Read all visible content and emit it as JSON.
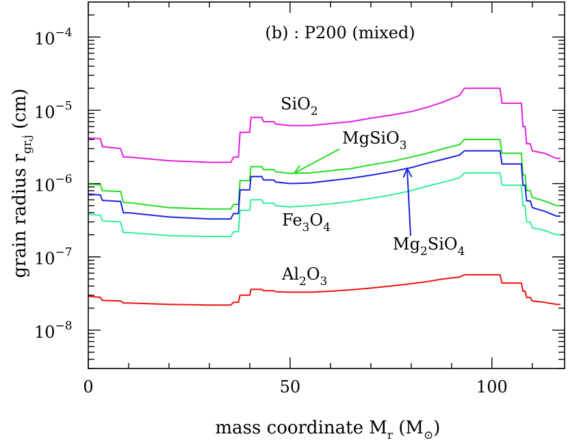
{
  "chart_data": {
    "type": "line",
    "title": "(b) : P200 (mixed)",
    "xlabel": "mass coordinate M",
    "xlabel_sub": "r",
    "xlabel_unit_open": " (M",
    "xlabel_unit_sub": "⊙",
    "xlabel_unit_close": ")",
    "ylabel": "grain radius r",
    "ylabel_sub": "gr,j",
    "ylabel_unit": " (cm)",
    "xlim": [
      0,
      118
    ],
    "ylim": [
      3e-09,
      0.0003
    ],
    "yscale": "log",
    "x_ticks": [
      {
        "value": 0,
        "label": "0"
      },
      {
        "value": 50,
        "label": "50"
      },
      {
        "value": 100,
        "label": "100"
      }
    ],
    "y_ticks": [
      {
        "exp": -8,
        "base": "10",
        "sup": "−8"
      },
      {
        "exp": -7,
        "base": "10",
        "sup": "−7"
      },
      {
        "exp": -6,
        "base": "10",
        "sup": "−6"
      },
      {
        "exp": -5,
        "base": "10",
        "sup": "−5"
      },
      {
        "exp": -4,
        "base": "10",
        "sup": "−4"
      }
    ],
    "series": [
      {
        "name": "SiO2",
        "color": "#e020e0",
        "points": [
          [
            0,
            4.2e-06
          ],
          [
            3,
            4.1e-06
          ],
          [
            3.5,
            3.2e-06
          ],
          [
            8,
            3e-06
          ],
          [
            8.7,
            2.3e-06
          ],
          [
            10,
            2.3e-06
          ],
          [
            20,
            2.05e-06
          ],
          [
            30,
            1.95e-06
          ],
          [
            35.3,
            1.95e-06
          ],
          [
            36,
            2.3e-06
          ],
          [
            37.2,
            2.3e-06
          ],
          [
            37.6,
            5e-06
          ],
          [
            40,
            5e-06
          ],
          [
            40.3,
            8e-06
          ],
          [
            43,
            8e-06
          ],
          [
            43.4,
            7e-06
          ],
          [
            46,
            7e-06
          ],
          [
            46.4,
            6.5e-06
          ],
          [
            50,
            6.2e-06
          ],
          [
            55,
            6.2e-06
          ],
          [
            60,
            6.6e-06
          ],
          [
            65,
            7e-06
          ],
          [
            70,
            7.8e-06
          ],
          [
            75,
            8.6e-06
          ],
          [
            80,
            9.6e-06
          ],
          [
            84,
            1.1e-05
          ],
          [
            88,
            1.3e-05
          ],
          [
            92,
            1.6e-05
          ],
          [
            93.2,
            2e-05
          ],
          [
            102,
            2e-05
          ],
          [
            102.5,
            1.25e-05
          ],
          [
            107.3,
            1.25e-05
          ],
          [
            107.7,
            6e-06
          ],
          [
            108.2,
            6e-06
          ],
          [
            108.6,
            3.5e-06
          ],
          [
            109.5,
            3.5e-06
          ],
          [
            110,
            2.8e-06
          ],
          [
            113,
            2.6e-06
          ],
          [
            116,
            2.2e-06
          ],
          [
            117,
            2.2e-06
          ]
        ]
      },
      {
        "name": "MgSiO3",
        "color": "#22dd22",
        "points": [
          [
            0,
            9.8e-07
          ],
          [
            3,
            9.6e-07
          ],
          [
            3.5,
            8e-07
          ],
          [
            8,
            7.8e-07
          ],
          [
            8.7,
            5.5e-07
          ],
          [
            10,
            5.5e-07
          ],
          [
            20,
            4.7e-07
          ],
          [
            30,
            4.5e-07
          ],
          [
            35.3,
            4.5e-07
          ],
          [
            36,
            5.2e-07
          ],
          [
            37.2,
            5.2e-07
          ],
          [
            37.6,
            1.1e-06
          ],
          [
            40,
            1.1e-06
          ],
          [
            40.3,
            1.7e-06
          ],
          [
            43,
            1.7e-06
          ],
          [
            43.4,
            1.55e-06
          ],
          [
            46,
            1.55e-06
          ],
          [
            46.4,
            1.45e-06
          ],
          [
            50,
            1.38e-06
          ],
          [
            55,
            1.4e-06
          ],
          [
            60,
            1.5e-06
          ],
          [
            65,
            1.6e-06
          ],
          [
            70,
            1.8e-06
          ],
          [
            75,
            2e-06
          ],
          [
            80,
            2.3e-06
          ],
          [
            84,
            2.6e-06
          ],
          [
            88,
            3e-06
          ],
          [
            92,
            3.4e-06
          ],
          [
            93.2,
            4e-06
          ],
          [
            102,
            4e-06
          ],
          [
            102.5,
            2.6e-06
          ],
          [
            107.3,
            2.6e-06
          ],
          [
            107.7,
            1.3e-06
          ],
          [
            108.2,
            1.3e-06
          ],
          [
            108.6,
            8e-07
          ],
          [
            109.5,
            8e-07
          ],
          [
            110,
            6.5e-07
          ],
          [
            113,
            5.8e-07
          ],
          [
            116,
            5e-07
          ],
          [
            117,
            5e-07
          ]
        ]
      },
      {
        "name": "Mg2SiO4",
        "color": "#1a22dd",
        "points": [
          [
            0,
            7.2e-07
          ],
          [
            3,
            7e-07
          ],
          [
            3.5,
            5.9e-07
          ],
          [
            8,
            5.7e-07
          ],
          [
            8.7,
            4e-07
          ],
          [
            10,
            4e-07
          ],
          [
            20,
            3.5e-07
          ],
          [
            30,
            3.3e-07
          ],
          [
            35.3,
            3.3e-07
          ],
          [
            36,
            3.9e-07
          ],
          [
            37.2,
            3.9e-07
          ],
          [
            37.6,
            8.2e-07
          ],
          [
            40,
            8.2e-07
          ],
          [
            40.3,
            1.25e-06
          ],
          [
            43,
            1.25e-06
          ],
          [
            43.4,
            1.12e-06
          ],
          [
            46,
            1.12e-06
          ],
          [
            46.4,
            1.05e-06
          ],
          [
            50,
            1e-06
          ],
          [
            55,
            1.02e-06
          ],
          [
            60,
            1.1e-06
          ],
          [
            65,
            1.18e-06
          ],
          [
            70,
            1.3e-06
          ],
          [
            75,
            1.45e-06
          ],
          [
            80,
            1.65e-06
          ],
          [
            84,
            1.9e-06
          ],
          [
            88,
            2.15e-06
          ],
          [
            92,
            2.45e-06
          ],
          [
            93.2,
            2.8e-06
          ],
          [
            102,
            2.8e-06
          ],
          [
            102.5,
            1.85e-06
          ],
          [
            107.3,
            1.85e-06
          ],
          [
            107.7,
            9.5e-07
          ],
          [
            108.2,
            9.5e-07
          ],
          [
            108.6,
            5.8e-07
          ],
          [
            109.5,
            5.8e-07
          ],
          [
            110,
            4.7e-07
          ],
          [
            113,
            4.2e-07
          ],
          [
            116,
            3.6e-07
          ],
          [
            117,
            3.6e-07
          ]
        ]
      },
      {
        "name": "Fe3O4",
        "color": "#33ee99",
        "points": [
          [
            0,
            3.8e-07
          ],
          [
            3,
            3.7e-07
          ],
          [
            3.5,
            3.1e-07
          ],
          [
            8,
            3e-07
          ],
          [
            8.7,
            2.15e-07
          ],
          [
            10,
            2.15e-07
          ],
          [
            20,
            1.95e-07
          ],
          [
            30,
            1.9e-07
          ],
          [
            35.3,
            1.9e-07
          ],
          [
            36,
            2.2e-07
          ],
          [
            37.2,
            2.2e-07
          ],
          [
            37.6,
            4.3e-07
          ],
          [
            40,
            4.3e-07
          ],
          [
            40.3,
            6e-07
          ],
          [
            43,
            6e-07
          ],
          [
            43.4,
            5.4e-07
          ],
          [
            46,
            5.4e-07
          ],
          [
            46.4,
            5e-07
          ],
          [
            50,
            4.8e-07
          ],
          [
            55,
            5e-07
          ],
          [
            60,
            5.3e-07
          ],
          [
            65,
            5.7e-07
          ],
          [
            70,
            6.3e-07
          ],
          [
            75,
            7e-07
          ],
          [
            80,
            8e-07
          ],
          [
            84,
            9.2e-07
          ],
          [
            88,
            1.05e-06
          ],
          [
            92,
            1.2e-06
          ],
          [
            93.2,
            1.4e-06
          ],
          [
            102,
            1.4e-06
          ],
          [
            102.5,
            9.5e-07
          ],
          [
            107.3,
            9.5e-07
          ],
          [
            107.7,
            5e-07
          ],
          [
            108.2,
            5e-07
          ],
          [
            108.6,
            3e-07
          ],
          [
            109.5,
            3e-07
          ],
          [
            110,
            2.5e-07
          ],
          [
            113,
            2.3e-07
          ],
          [
            116,
            2e-07
          ],
          [
            117,
            2e-07
          ]
        ]
      },
      {
        "name": "Al2O3",
        "color": "#ee1111",
        "points": [
          [
            0,
            2.9e-08
          ],
          [
            3,
            2.8e-08
          ],
          [
            3.5,
            2.55e-08
          ],
          [
            8,
            2.5e-08
          ],
          [
            8.7,
            2.35e-08
          ],
          [
            10,
            2.35e-08
          ],
          [
            20,
            2.25e-08
          ],
          [
            30,
            2.2e-08
          ],
          [
            35.3,
            2.2e-08
          ],
          [
            36,
            2.4e-08
          ],
          [
            37.2,
            2.4e-08
          ],
          [
            37.6,
            3e-08
          ],
          [
            40,
            3e-08
          ],
          [
            40.3,
            3.6e-08
          ],
          [
            43,
            3.6e-08
          ],
          [
            43.4,
            3.45e-08
          ],
          [
            46,
            3.45e-08
          ],
          [
            46.4,
            3.35e-08
          ],
          [
            50,
            3.3e-08
          ],
          [
            55,
            3.3e-08
          ],
          [
            60,
            3.4e-08
          ],
          [
            65,
            3.55e-08
          ],
          [
            70,
            3.75e-08
          ],
          [
            75,
            4e-08
          ],
          [
            80,
            4.3e-08
          ],
          [
            84,
            4.6e-08
          ],
          [
            88,
            5e-08
          ],
          [
            92,
            5.3e-08
          ],
          [
            93.2,
            5.7e-08
          ],
          [
            102,
            5.7e-08
          ],
          [
            102.5,
            4.4e-08
          ],
          [
            107.3,
            4.4e-08
          ],
          [
            107.7,
            3.4e-08
          ],
          [
            108.2,
            3.4e-08
          ],
          [
            108.6,
            2.8e-08
          ],
          [
            109.5,
            2.8e-08
          ],
          [
            110,
            2.5e-08
          ],
          [
            113,
            2.4e-08
          ],
          [
            116,
            2.25e-08
          ],
          [
            117,
            2.25e-08
          ]
        ]
      }
    ],
    "annotations": [
      {
        "base": "SiO",
        "subs": [
          "2"
        ],
        "parts": [
          "SiO",
          "2"
        ],
        "color": "#e020e0"
      },
      {
        "base": "MgSiO",
        "parts": [
          "MgSiO",
          "3"
        ],
        "color": "#22dd22",
        "arrow_to": [
          51,
          1.38e-06
        ]
      },
      {
        "parts": [
          "Fe",
          "3",
          "O",
          "4"
        ],
        "color": "#33ee99"
      },
      {
        "parts": [
          "Mg",
          "2",
          "SiO",
          "4"
        ],
        "color": "#1a22dd",
        "arrow_to": [
          79,
          1.6e-06
        ]
      },
      {
        "parts": [
          "Al",
          "2",
          "O",
          "3"
        ],
        "color": "#ee1111"
      }
    ]
  }
}
